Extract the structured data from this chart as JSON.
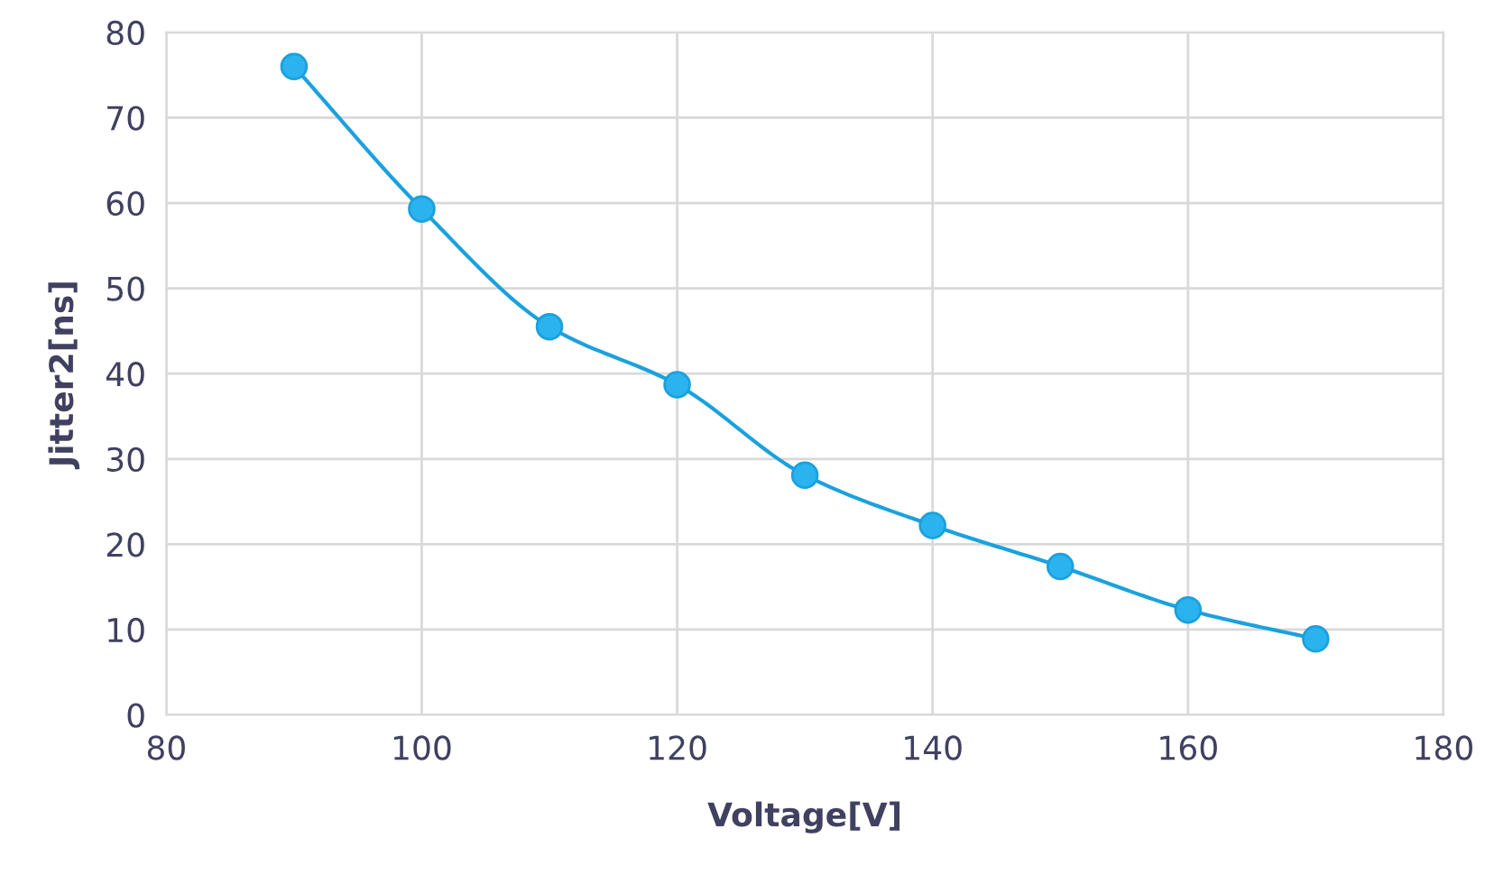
{
  "chart_data": {
    "type": "line",
    "xlabel": "Voltage[V]",
    "ylabel": "Jitter2[ns]",
    "x": [
      90,
      100,
      110,
      120,
      130,
      140,
      150,
      160,
      170
    ],
    "series": [
      {
        "color": "#1ba1dd",
        "values": [
          76.0,
          59.3,
          45.5,
          38.7,
          28.1,
          22.2,
          17.4,
          12.3,
          8.9
        ]
      }
    ],
    "xlim": [
      80,
      180
    ],
    "xticks": [
      80,
      100,
      120,
      140,
      160,
      180
    ],
    "ylim": [
      0,
      80
    ],
    "yticks": [
      0,
      10,
      20,
      30,
      40,
      50,
      60,
      70,
      80
    ],
    "grid": true,
    "marker": "circle",
    "line_style": "solid"
  }
}
